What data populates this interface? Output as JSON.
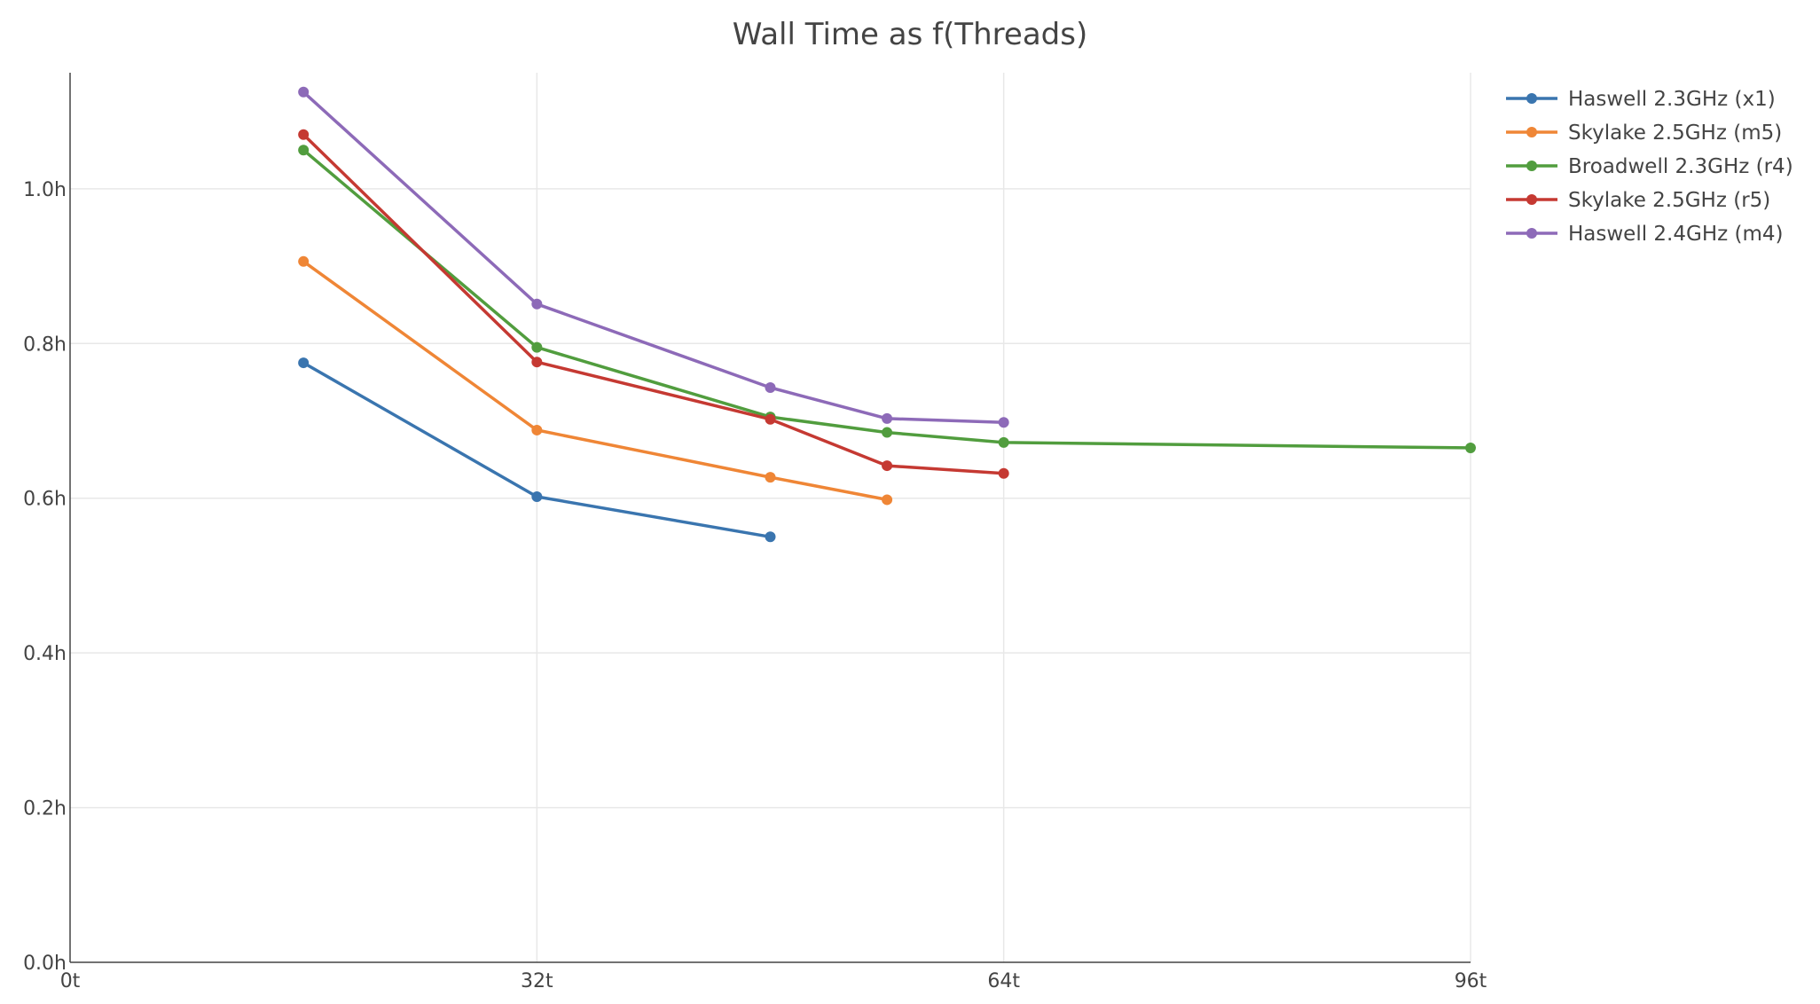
{
  "chart_data": {
    "type": "line",
    "title": "Wall Time as f(Threads)",
    "xlabel": "",
    "ylabel": "",
    "xlim": [
      0,
      96
    ],
    "ylim": [
      0,
      1.15
    ],
    "x_ticks": [
      {
        "value": 0,
        "label": "0t"
      },
      {
        "value": 32,
        "label": "32t"
      },
      {
        "value": 64,
        "label": "64t"
      },
      {
        "value": 96,
        "label": "96t"
      }
    ],
    "y_ticks": [
      {
        "value": 0,
        "label": "0.0h"
      },
      {
        "value": 0.2,
        "label": "0.2h"
      },
      {
        "value": 0.4,
        "label": "0.4h"
      },
      {
        "value": 0.6,
        "label": "0.6h"
      },
      {
        "value": 0.8,
        "label": "0.8h"
      },
      {
        "value": 1.0,
        "label": "1.0h"
      }
    ],
    "grid": true,
    "legend_position": "top-right",
    "series": [
      {
        "name": "Haswell 2.3GHz (x1)",
        "color": "#3a75af",
        "x": [
          16,
          32,
          48
        ],
        "y": [
          0.775,
          0.602,
          0.55
        ]
      },
      {
        "name": "Skylake 2.5GHz (m5)",
        "color": "#ef8636",
        "x": [
          16,
          32,
          48,
          56
        ],
        "y": [
          0.906,
          0.688,
          0.627,
          0.598
        ]
      },
      {
        "name": "Broadwell 2.3GHz (r4)",
        "color": "#519d3e",
        "x": [
          16,
          32,
          48,
          56,
          64,
          96
        ],
        "y": [
          1.05,
          0.795,
          0.705,
          0.685,
          0.672,
          0.665
        ]
      },
      {
        "name": "Skylake 2.5GHz (r5)",
        "color": "#c53932",
        "x": [
          16,
          32,
          48,
          56,
          64
        ],
        "y": [
          1.07,
          0.776,
          0.702,
          0.642,
          0.632
        ]
      },
      {
        "name": "Haswell 2.4GHz (m4)",
        "color": "#8d6ab8",
        "x": [
          16,
          32,
          48,
          56,
          64
        ],
        "y": [
          1.125,
          0.851,
          0.743,
          0.703,
          0.698
        ]
      }
    ]
  }
}
